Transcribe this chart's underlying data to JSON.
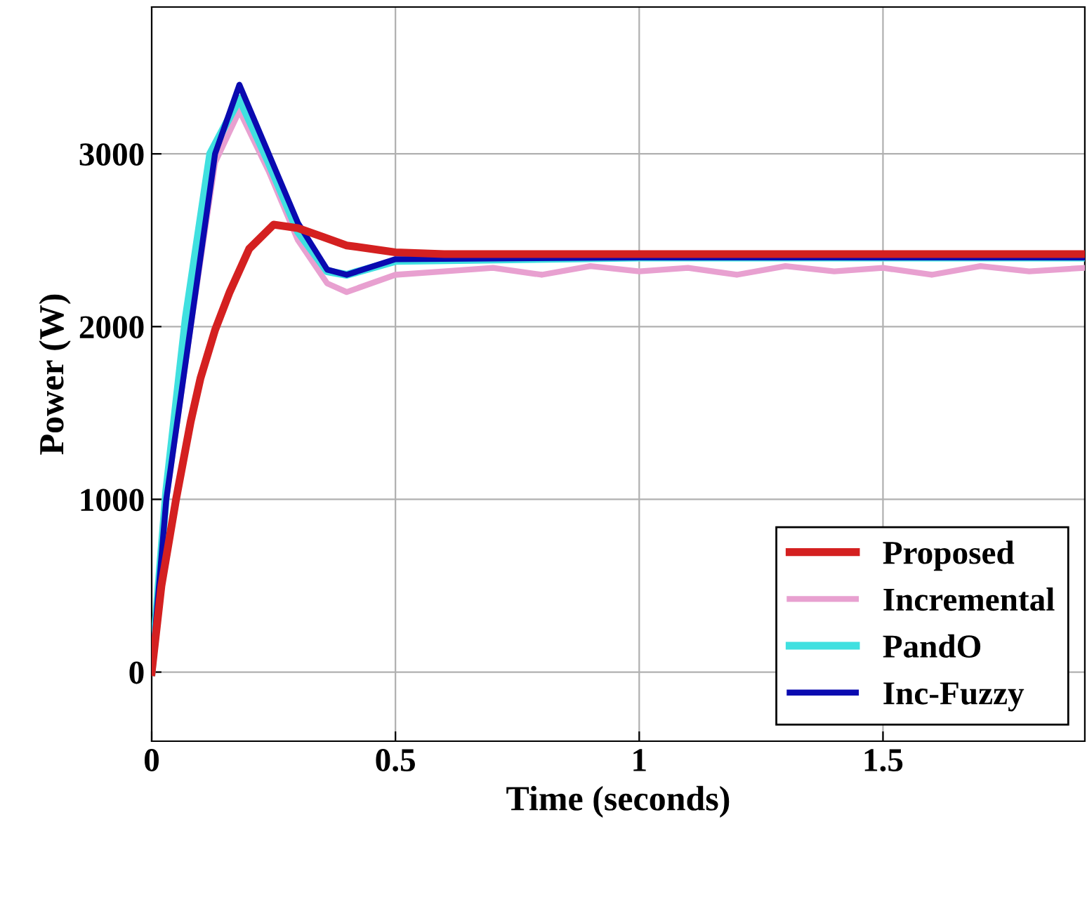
{
  "chart_data": {
    "type": "line",
    "xlabel": "Time (seconds)",
    "ylabel": "Power (W)",
    "xlim": [
      0,
      1.914
    ],
    "ylim": [
      -400,
      3850
    ],
    "xticks": [
      0,
      0.5,
      1,
      1.5
    ],
    "yticks": [
      0,
      1000,
      2000,
      3000
    ],
    "grid": true,
    "legend": "lower right",
    "series": [
      {
        "name": "Proposed",
        "color": "#d42020",
        "x": [
          0,
          0.02,
          0.05,
          0.08,
          0.1,
          0.13,
          0.16,
          0.2,
          0.25,
          0.3,
          0.35,
          0.4,
          0.5,
          0.6,
          1.0,
          1.5,
          1.914
        ],
        "values": [
          0,
          500,
          1000,
          1450,
          1700,
          1980,
          2200,
          2450,
          2590,
          2570,
          2520,
          2470,
          2430,
          2420,
          2420,
          2420,
          2420
        ]
      },
      {
        "name": "Incremental",
        "color": "#e8a0d0",
        "x": [
          0,
          0.03,
          0.08,
          0.13,
          0.18,
          0.24,
          0.3,
          0.36,
          0.4,
          0.45,
          0.5,
          0.6,
          0.7,
          0.8,
          0.9,
          1.0,
          1.1,
          1.2,
          1.3,
          1.4,
          1.5,
          1.6,
          1.7,
          1.8,
          1.914
        ],
        "values": [
          0,
          1000,
          2000,
          2950,
          3250,
          2900,
          2500,
          2250,
          2200,
          2250,
          2300,
          2320,
          2340,
          2300,
          2350,
          2320,
          2340,
          2300,
          2350,
          2320,
          2340,
          2300,
          2350,
          2320,
          2340
        ]
      },
      {
        "name": "PandO",
        "color": "#40e0e0",
        "x": [
          0,
          0.03,
          0.07,
          0.12,
          0.18,
          0.24,
          0.3,
          0.36,
          0.4,
          0.5,
          1.0,
          1.5,
          1.914
        ],
        "values": [
          0,
          1050,
          2050,
          3000,
          3320,
          2950,
          2550,
          2320,
          2300,
          2380,
          2400,
          2400,
          2400
        ]
      },
      {
        "name": "Inc-Fuzzy",
        "color": "#0a0ab0",
        "x": [
          0,
          0.03,
          0.08,
          0.13,
          0.18,
          0.24,
          0.3,
          0.36,
          0.4,
          0.5,
          1.0,
          1.5,
          1.914
        ],
        "values": [
          0,
          1000,
          2000,
          3000,
          3400,
          3000,
          2600,
          2330,
          2300,
          2390,
          2400,
          2400,
          2400
        ]
      }
    ]
  }
}
